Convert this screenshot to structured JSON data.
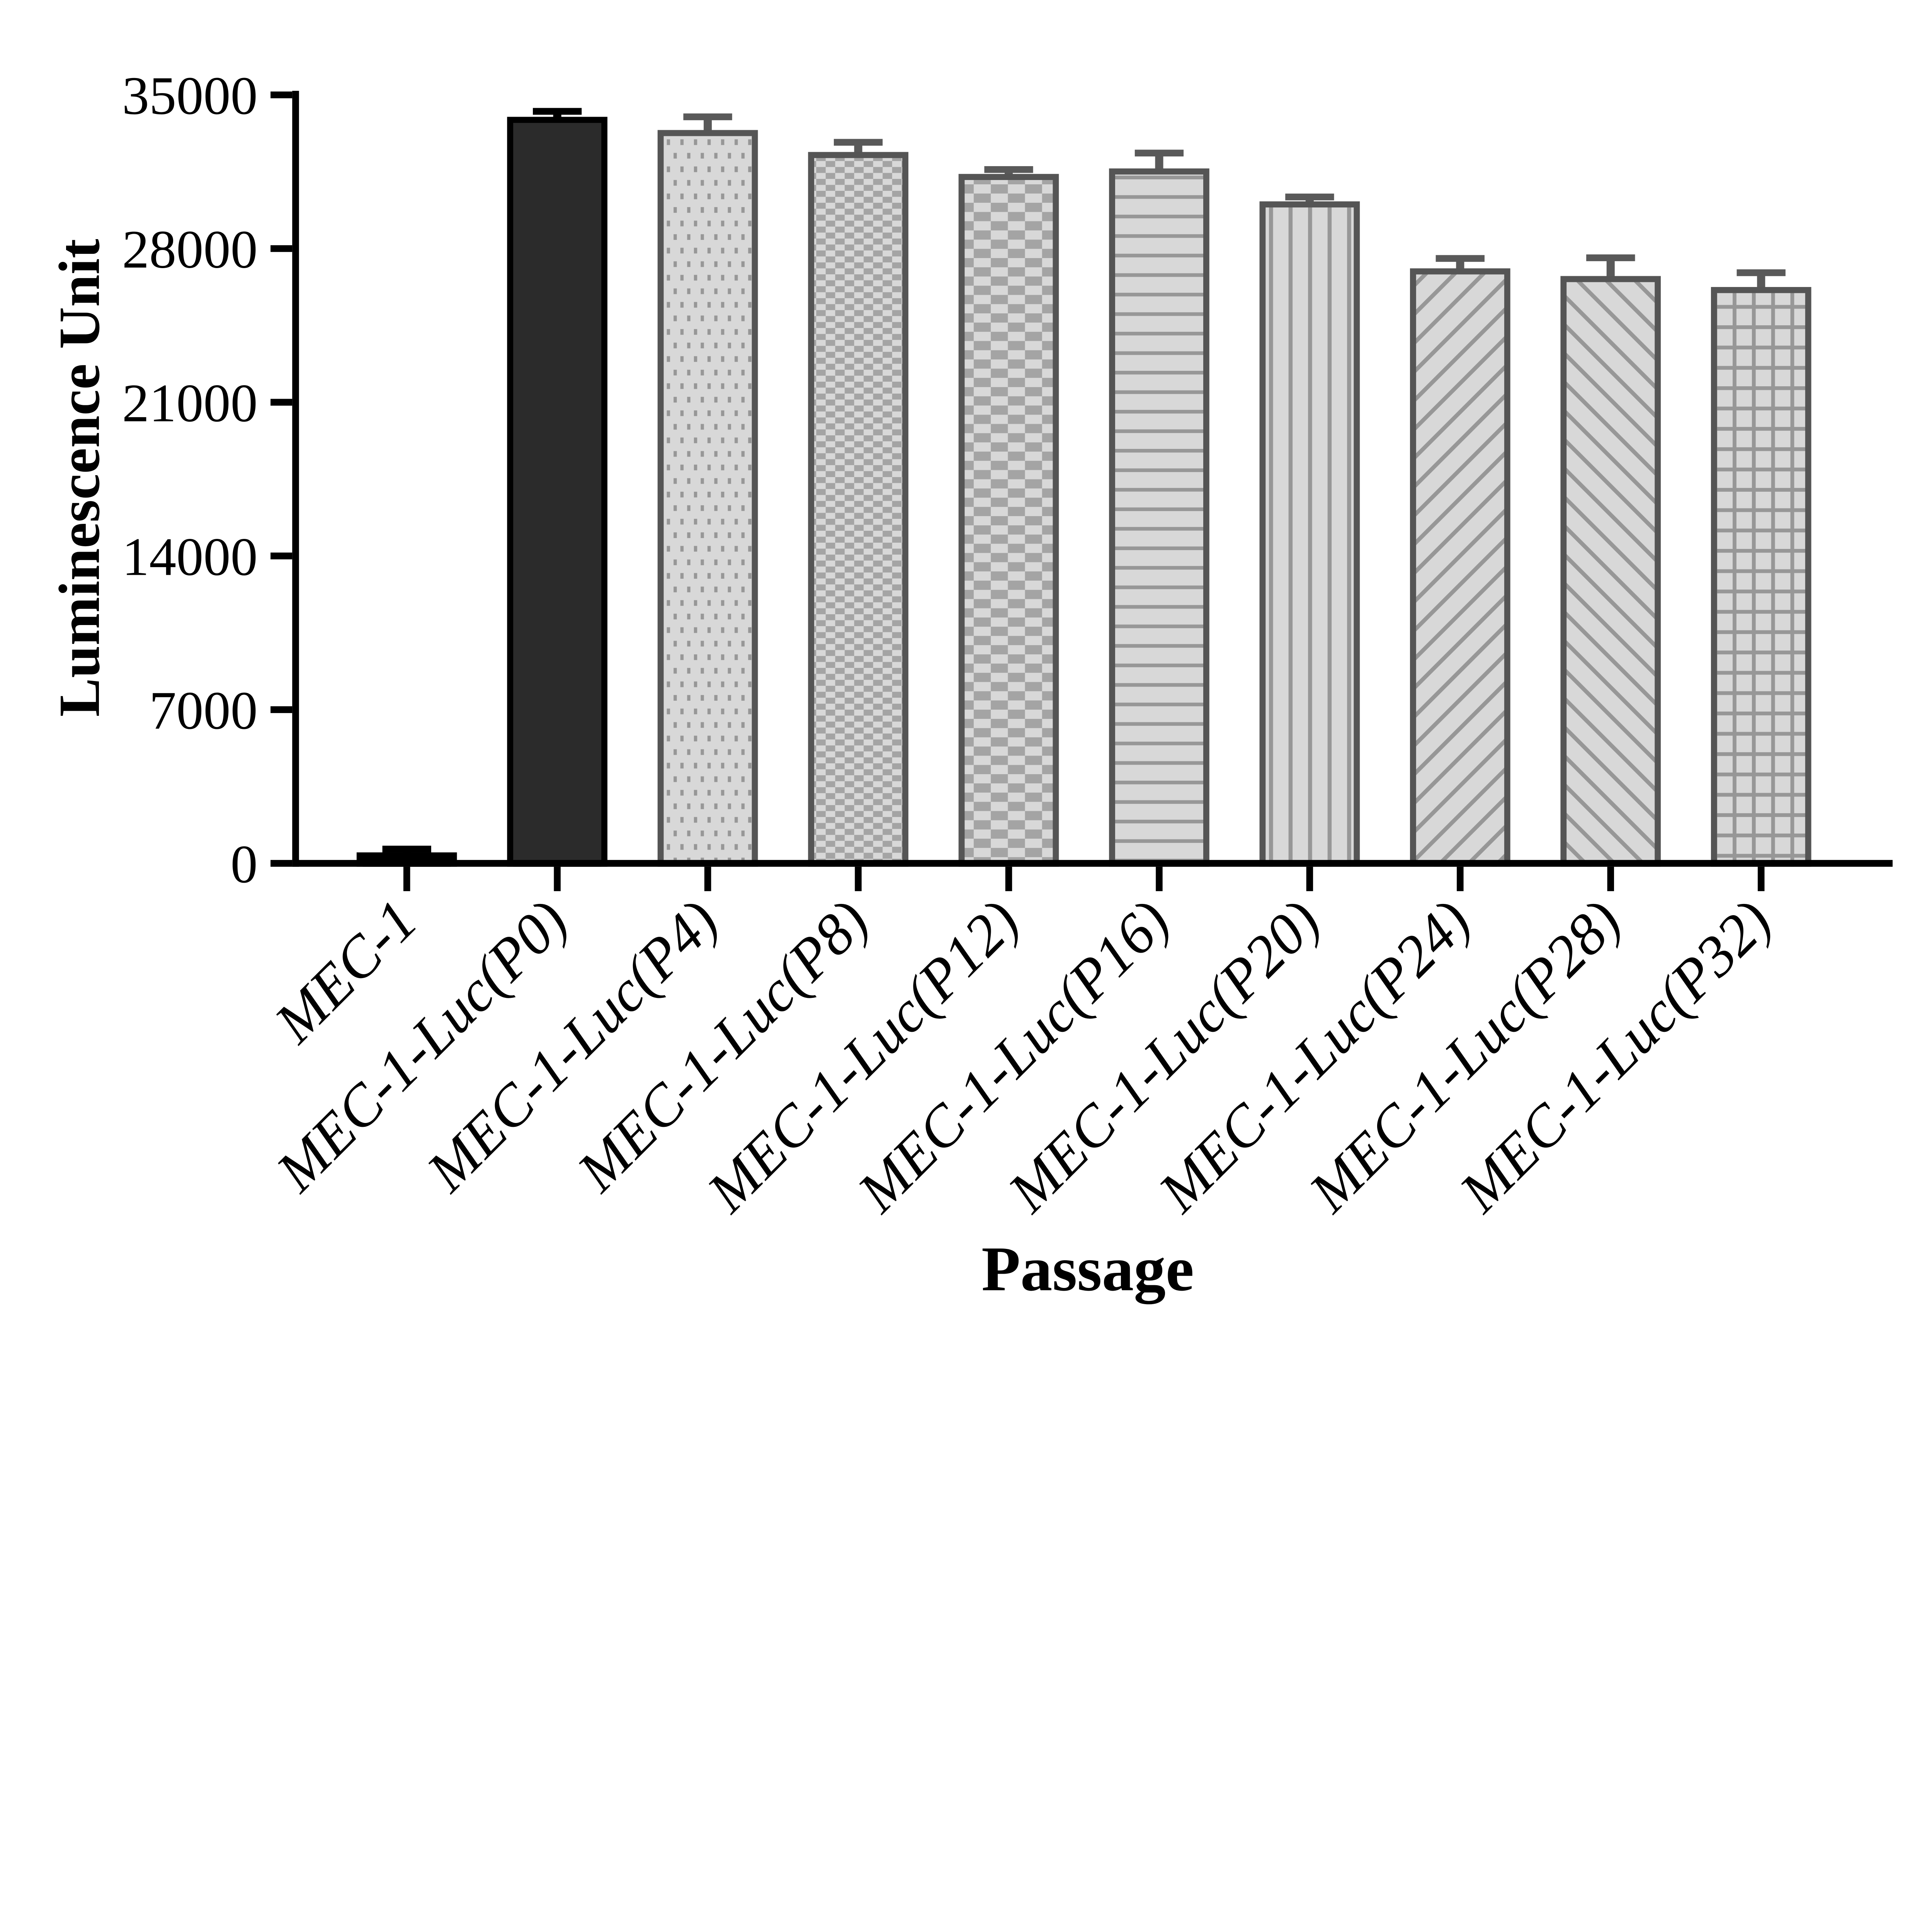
{
  "chart_data": {
    "type": "bar",
    "title": "",
    "xlabel": "Passage",
    "ylabel": "Luminescence Unit",
    "ylim": [
      0,
      35000
    ],
    "yticks": [
      0,
      7000,
      14000,
      21000,
      28000,
      35000
    ],
    "grid": false,
    "legend": "none",
    "categories": [
      "MEC-1",
      "MEC-1-Luc(P0)",
      "MEC-1-Luc(P4)",
      "MEC-1-Luc(P8)",
      "MEC-1-Luc(P12)",
      "MEC-1-Luc(P16)",
      "MEC-1-Luc(P20)",
      "MEC-1-Luc(P24)",
      "MEC-1-Luc(P28)",
      "MEC-1-Luc(P32)"
    ],
    "series": [
      {
        "name": "Luminescence Unit",
        "values": [
          500,
          34000,
          33400,
          32400,
          31400,
          31650,
          30150,
          27100,
          26750,
          26250
        ],
        "errors_plus": [
          150,
          250,
          600,
          440,
          200,
          700,
          200,
          450,
          830,
          650
        ]
      }
    ],
    "bar_patterns": [
      "solid-black",
      "solid-dark",
      "dots",
      "checker-small",
      "checker-large",
      "hlines",
      "vlines",
      "diag-up",
      "diag-down",
      "grid"
    ],
    "style": {
      "bar_bg": "#d8d8d8",
      "pattern_line": "#979797",
      "checker_dark": "#a4a4a4",
      "checker_light": "#d8d8d8",
      "gray_border": "#555555",
      "black": "#000000",
      "dark_fill": "#2b2b2b",
      "gray_error": "#595959",
      "axis_color": "#000000",
      "text_color": "#000000"
    }
  }
}
